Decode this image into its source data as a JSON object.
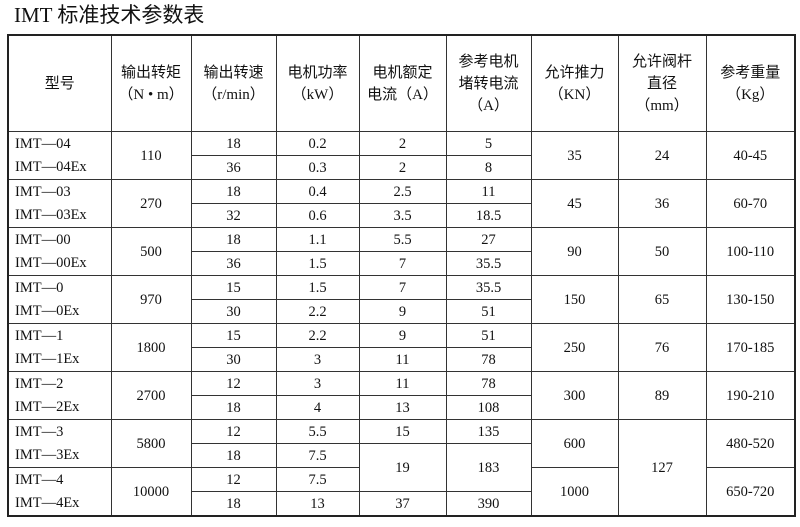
{
  "title": "IMT 标准技术参数表",
  "headers": [
    [
      "型号"
    ],
    [
      "输出转矩",
      "（N • m）"
    ],
    [
      "输出转速",
      "（r/min）"
    ],
    [
      "电机功率",
      "（kW）"
    ],
    [
      "电机额定",
      "电流（A）"
    ],
    [
      "参考电机",
      "堵转电流",
      "（A）"
    ],
    [
      "允许推力",
      "（KN）"
    ],
    [
      "允许阀杆",
      "直径",
      "（mm）"
    ],
    [
      "参考重量",
      "（Kg）"
    ]
  ],
  "rows": [
    [
      {
        "t": "IMT—04\nIMT—04Ex",
        "s": 2,
        "m": 1
      },
      {
        "t": "110",
        "s": 2
      },
      {
        "t": "18"
      },
      {
        "t": "0.2"
      },
      {
        "t": "2"
      },
      {
        "t": "5"
      },
      {
        "t": "35",
        "s": 2
      },
      {
        "t": "24",
        "s": 2
      },
      {
        "t": "40-45",
        "s": 2
      }
    ],
    [
      {
        "t": "36"
      },
      {
        "t": "0.3"
      },
      {
        "t": "2"
      },
      {
        "t": "8"
      }
    ],
    [
      {
        "t": "IMT—03\nIMT—03Ex",
        "s": 2,
        "m": 1
      },
      {
        "t": "270",
        "s": 2
      },
      {
        "t": "18"
      },
      {
        "t": "0.4"
      },
      {
        "t": "2.5"
      },
      {
        "t": "11"
      },
      {
        "t": "45",
        "s": 2
      },
      {
        "t": "36",
        "s": 2
      },
      {
        "t": "60-70",
        "s": 2
      }
    ],
    [
      {
        "t": "32"
      },
      {
        "t": "0.6"
      },
      {
        "t": "3.5"
      },
      {
        "t": "18.5"
      }
    ],
    [
      {
        "t": "IMT—00\nIMT—00Ex",
        "s": 2,
        "m": 1
      },
      {
        "t": "500",
        "s": 2
      },
      {
        "t": "18"
      },
      {
        "t": "1.1"
      },
      {
        "t": "5.5"
      },
      {
        "t": "27"
      },
      {
        "t": "90",
        "s": 2
      },
      {
        "t": "50",
        "s": 2
      },
      {
        "t": "100-110",
        "s": 2
      }
    ],
    [
      {
        "t": "36"
      },
      {
        "t": "1.5"
      },
      {
        "t": "7"
      },
      {
        "t": "35.5"
      }
    ],
    [
      {
        "t": "IMT—0\nIMT—0Ex",
        "s": 2,
        "m": 1
      },
      {
        "t": "970",
        "s": 2
      },
      {
        "t": "15"
      },
      {
        "t": "1.5"
      },
      {
        "t": "7"
      },
      {
        "t": "35.5"
      },
      {
        "t": "150",
        "s": 2
      },
      {
        "t": "65",
        "s": 2
      },
      {
        "t": "130-150",
        "s": 2
      }
    ],
    [
      {
        "t": "30"
      },
      {
        "t": "2.2"
      },
      {
        "t": "9"
      },
      {
        "t": "51"
      }
    ],
    [
      {
        "t": "IMT—1\nIMT—1Ex",
        "s": 2,
        "m": 1
      },
      {
        "t": "1800",
        "s": 2
      },
      {
        "t": "15"
      },
      {
        "t": "2.2"
      },
      {
        "t": "9"
      },
      {
        "t": "51"
      },
      {
        "t": "250",
        "s": 2
      },
      {
        "t": "76",
        "s": 2
      },
      {
        "t": "170-185",
        "s": 2
      }
    ],
    [
      {
        "t": "30"
      },
      {
        "t": "3"
      },
      {
        "t": "11"
      },
      {
        "t": "78"
      }
    ],
    [
      {
        "t": "IMT—2\nIMT—2Ex",
        "s": 2,
        "m": 1
      },
      {
        "t": "2700",
        "s": 2
      },
      {
        "t": "12"
      },
      {
        "t": "3"
      },
      {
        "t": "11"
      },
      {
        "t": "78"
      },
      {
        "t": "300",
        "s": 2
      },
      {
        "t": "89",
        "s": 2
      },
      {
        "t": "190-210",
        "s": 2
      }
    ],
    [
      {
        "t": "18"
      },
      {
        "t": "4"
      },
      {
        "t": "13"
      },
      {
        "t": "108"
      }
    ],
    [
      {
        "t": "IMT—3\nIMT—3Ex",
        "s": 2,
        "m": 1
      },
      {
        "t": "5800",
        "s": 2
      },
      {
        "t": "12"
      },
      {
        "t": "5.5"
      },
      {
        "t": "15"
      },
      {
        "t": "135"
      },
      {
        "t": "600",
        "s": 2
      },
      {
        "t": "127",
        "s": 4
      },
      {
        "t": "480-520",
        "s": 2
      }
    ],
    [
      {
        "t": "18"
      },
      {
        "t": "7.5"
      },
      {
        "t": "19",
        "s": 2
      },
      {
        "t": "183",
        "s": 2
      }
    ],
    [
      {
        "t": "IMT—4\nIMT—4Ex",
        "s": 2,
        "m": 1
      },
      {
        "t": "10000",
        "s": 2
      },
      {
        "t": "12"
      },
      {
        "t": "7.5"
      },
      {
        "t": "1000",
        "s": 2
      },
      {
        "t": "650-720",
        "s": 2
      }
    ],
    [
      {
        "t": "18"
      },
      {
        "t": "13"
      },
      {
        "t": "37"
      },
      {
        "t": "390"
      }
    ]
  ]
}
